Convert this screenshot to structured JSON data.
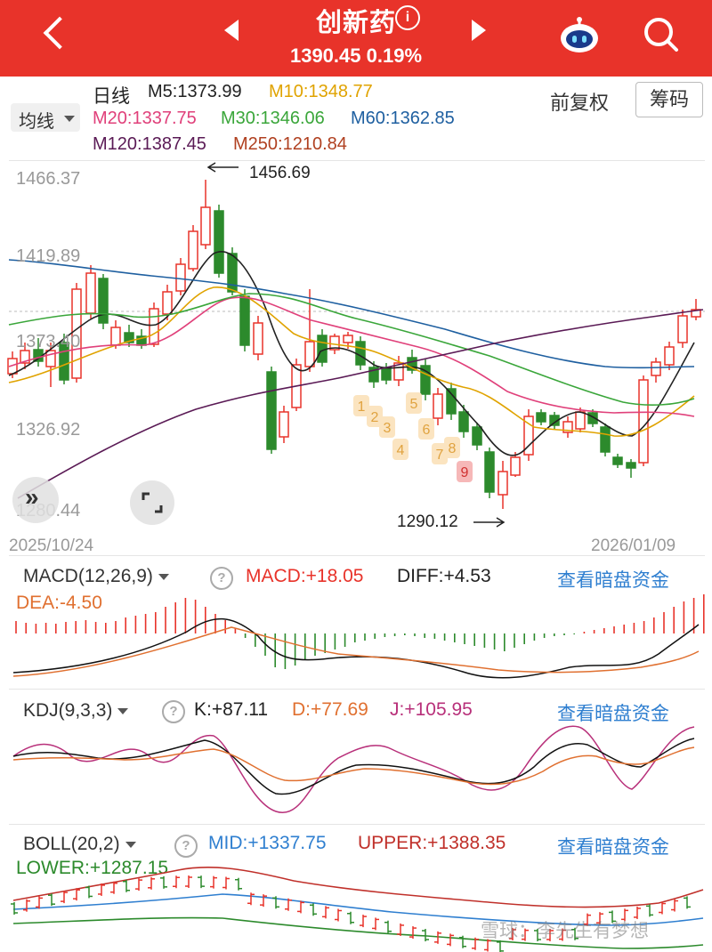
{
  "header": {
    "title": "创新药",
    "info_glyph": "i",
    "price": "1390.45",
    "change_pct": "0.19%",
    "quote_line": "1390.45  0.19%",
    "icons": [
      "back-icon",
      "prev-icon",
      "next-icon",
      "robot-icon",
      "search-icon"
    ]
  },
  "toolbar": {
    "period": "日线",
    "ma_selector": "均线",
    "adjust": "前复权",
    "chips_button": "筹码",
    "ma": [
      {
        "label": "M5:1373.99",
        "color": "#222222"
      },
      {
        "label": "M10:1348.77",
        "color": "#e0a300"
      },
      {
        "label": "M20:1337.75",
        "color": "#e0407a"
      },
      {
        "label": "M30:1346.06",
        "color": "#3aa63a"
      },
      {
        "label": "M60:1362.85",
        "color": "#1e5fa0"
      },
      {
        "label": "M120:1387.45",
        "color": "#5a1a55"
      },
      {
        "label": "M250:1210.84",
        "color": "#b04020"
      }
    ]
  },
  "kline": {
    "y_ticks": [
      "1466.37",
      "1419.89",
      "1373.40",
      "1326.92",
      "1280.44"
    ],
    "high_label": "1456.69",
    "low_label": "1290.12",
    "date_start": "2025/10/24",
    "date_end": "2026/01/09",
    "td_counts": [
      "1",
      "2",
      "3",
      "4",
      "5",
      "6",
      "7",
      "8",
      "9"
    ],
    "expand_icon": "expand-icon",
    "collapse_icon": "fullscreen-icon"
  },
  "macd": {
    "label": "MACD(12,26,9)",
    "macd": "MACD:+18.05",
    "diff": "DIFF:+4.53",
    "dea": "DEA:-4.50",
    "link": "查看暗盘资金"
  },
  "kdj": {
    "label": "KDJ(9,3,3)",
    "k": "K:+87.11",
    "d": "D:+77.69",
    "j": "J:+105.95",
    "link": "查看暗盘资金"
  },
  "boll": {
    "label": "BOLL(20,2)",
    "mid": "MID:+1337.75",
    "upper": "UPPER:+1388.35",
    "lower": "LOWER:+1287.15",
    "link": "查看暗盘资金"
  },
  "watermark": "雪球：李先生有梦想",
  "colors": {
    "up": "#e8332a",
    "down": "#2c8a2c",
    "accent": "#e8332a",
    "link": "#2f7fd0"
  }
}
